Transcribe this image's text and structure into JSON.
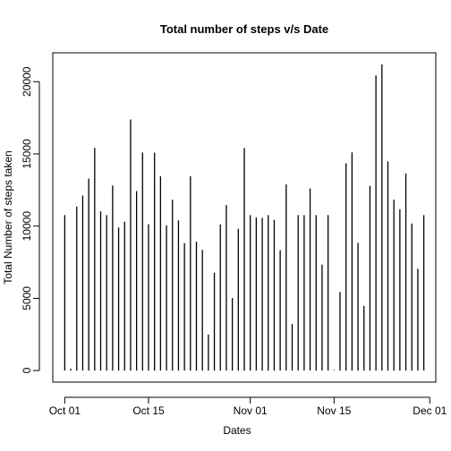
{
  "chart_data": {
    "type": "bar",
    "title": "Total number of steps v/s Date",
    "xlabel": "Dates",
    "ylabel": "Total Number of steps taken",
    "xlim": [
      "2012-09-29",
      "2012-12-02"
    ],
    "ylim": [
      -800,
      22000
    ],
    "x_ticks": [
      {
        "date": "2012-10-01",
        "label": "Oct 01"
      },
      {
        "date": "2012-10-15",
        "label": "Oct 15"
      },
      {
        "date": "2012-11-01",
        "label": "Nov 01"
      },
      {
        "date": "2012-11-15",
        "label": "Nov 15"
      },
      {
        "date": "2012-12-01",
        "label": "Dec 01"
      }
    ],
    "y_ticks": [
      {
        "value": 0,
        "label": "0"
      },
      {
        "value": 5000,
        "label": "5000"
      },
      {
        "value": 10000,
        "label": "10000"
      },
      {
        "value": 15000,
        "label": "15000"
      },
      {
        "value": 20000,
        "label": "20000"
      }
    ],
    "grid": false,
    "color": "#000000",
    "series": [
      {
        "x": [
          "2012-10-01",
          "2012-10-02",
          "2012-10-03",
          "2012-10-04",
          "2012-10-05",
          "2012-10-06",
          "2012-10-07",
          "2012-10-08",
          "2012-10-09",
          "2012-10-10",
          "2012-10-11",
          "2012-10-12",
          "2012-10-13",
          "2012-10-14",
          "2012-10-15",
          "2012-10-16",
          "2012-10-17",
          "2012-10-18",
          "2012-10-19",
          "2012-10-20",
          "2012-10-21",
          "2012-10-22",
          "2012-10-23",
          "2012-10-24",
          "2012-10-25",
          "2012-10-26",
          "2012-10-27",
          "2012-10-28",
          "2012-10-29",
          "2012-10-30",
          "2012-10-31",
          "2012-11-01",
          "2012-11-02",
          "2012-11-03",
          "2012-11-04",
          "2012-11-05",
          "2012-11-06",
          "2012-11-07",
          "2012-11-08",
          "2012-11-09",
          "2012-11-10",
          "2012-11-11",
          "2012-11-12",
          "2012-11-13",
          "2012-11-14",
          "2012-11-15",
          "2012-11-16",
          "2012-11-17",
          "2012-11-18",
          "2012-11-19",
          "2012-11-20",
          "2012-11-21",
          "2012-11-22",
          "2012-11-23",
          "2012-11-24",
          "2012-11-25",
          "2012-11-26",
          "2012-11-27",
          "2012-11-28",
          "2012-11-29",
          "2012-11-30"
        ],
        "values": [
          10766,
          126,
          11352,
          12116,
          13294,
          15420,
          11015,
          10766,
          12811,
          9900,
          10304,
          17382,
          12426,
          15098,
          10139,
          15084,
          13452,
          10056,
          11829,
          10395,
          8821,
          13460,
          8918,
          8355,
          2492,
          6778,
          10119,
          11458,
          5018,
          9819,
          15414,
          10766,
          10600,
          10571,
          10766,
          10439,
          8334,
          12883,
          3219,
          10766,
          10766,
          12608,
          10765,
          7336,
          10766,
          41,
          5441,
          14339,
          15110,
          8841,
          4472,
          12787,
          20427,
          21194,
          14478,
          11834,
          11162,
          13646,
          10183,
          7047,
          10766
        ]
      }
    ]
  }
}
